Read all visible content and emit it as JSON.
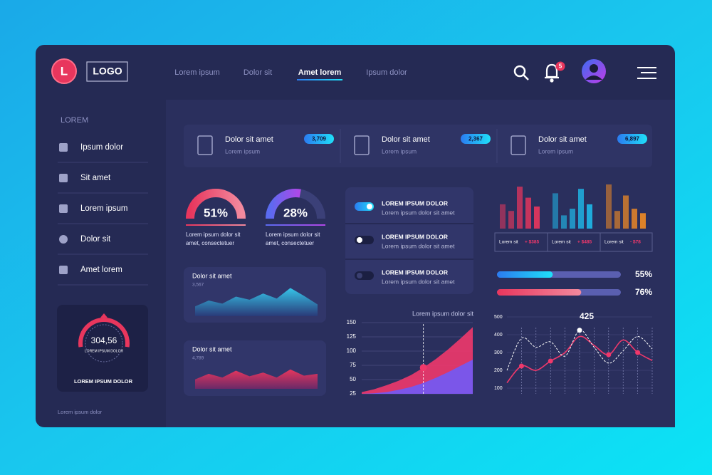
{
  "header": {
    "logo_letter": "L",
    "logo": "LOGO",
    "nav": [
      {
        "label": "Lorem ipsum",
        "active": false
      },
      {
        "label": "Dolor sit",
        "active": false
      },
      {
        "label": "Amet lorem",
        "active": true
      },
      {
        "label": "Ipsum dolor",
        "active": false
      }
    ],
    "notifications": 5
  },
  "sidebar": {
    "heading": "LOREM",
    "items": [
      "Ipsum dolor",
      "Sit amet",
      "Lorem ipsum",
      "Dolor sit",
      "Amet lorem"
    ],
    "gauge": {
      "value": "304,56",
      "inner_label": "LOREM IPSUM DOLOR",
      "label": "LOREM IPSUM DOLOR"
    },
    "footer": "Lorem ipsum dolor"
  },
  "stats": [
    {
      "title": "Dolor sit amet",
      "subtitle": "Lorem ipsum",
      "badge": "3,709"
    },
    {
      "title": "Dolor sit amet",
      "subtitle": "Lorem ipsum",
      "badge": "2,367"
    },
    {
      "title": "Dolor sit amet",
      "subtitle": "Lorem ipsum",
      "badge": "6,897"
    }
  ],
  "donuts": [
    {
      "value": 51,
      "value_label": "51%",
      "text": "Lorem ipsum dolor sit amet, consectetuer"
    },
    {
      "value": 28,
      "value_label": "28%",
      "text": "Lorem ipsum dolor sit amet, consectetuer"
    }
  ],
  "area_cards": [
    {
      "title": "Dolor sit amet",
      "value": "3,567",
      "values": [
        25,
        40,
        32,
        50,
        42,
        58,
        45,
        72,
        52,
        30
      ]
    },
    {
      "title": "Dolor sit amet",
      "value": "4,789",
      "values": [
        30,
        48,
        36,
        58,
        40,
        52,
        36,
        62,
        42,
        48
      ]
    }
  ],
  "toggles": [
    {
      "title": "LOREM IPSUM DOLOR",
      "text": "Lorem ipsum dolor sit amet",
      "on": true
    },
    {
      "title": "LOREM IPSUM DOLOR",
      "text": "Lorem ipsum dolor sit amet",
      "on": false
    },
    {
      "title": "LOREM IPSUM DOLOR",
      "text": "Lorem ipsum dolor sit amet",
      "on": false
    }
  ],
  "bar_chart": {
    "type": "bar",
    "groups": [
      {
        "values": [
          55,
          40,
          95,
          70,
          50
        ],
        "color": "#e8365d",
        "legend": "Lorem sit",
        "change": "+ $385"
      },
      {
        "values": [
          80,
          30,
          45,
          90,
          55
        ],
        "color": "#1fb8e8",
        "legend": "Lorem sit",
        "change": "+ $485"
      },
      {
        "values": [
          100,
          40,
          75,
          45,
          35
        ],
        "color": "#f08a24",
        "legend": "Lorem sit",
        "change": "- $78"
      }
    ]
  },
  "progress": [
    {
      "value": 55,
      "value_label": "55%"
    },
    {
      "value": 76,
      "value_label": "76%"
    }
  ],
  "area_chart": {
    "type": "area",
    "title": "Lorem ipsum dolor sit",
    "ylim": [
      25,
      150
    ],
    "yticks": [
      25,
      50,
      75,
      100,
      125,
      150
    ],
    "series": [
      {
        "color": "#f0386b",
        "values": [
          28,
          33,
          40,
          48,
          58,
          71,
          86,
          103,
          122,
          142
        ]
      },
      {
        "color": "#6a5cff",
        "values": [
          25,
          26,
          28,
          32,
          37,
          44,
          53,
          63,
          74,
          85
        ]
      }
    ]
  },
  "line_chart": {
    "type": "line",
    "ylim": [
      100,
      500
    ],
    "yticks": [
      100,
      200,
      300,
      400,
      500
    ],
    "series": [
      {
        "color": "#f0386b",
        "values": [
          130,
          224,
          200,
          252,
          300,
          390,
          340,
          288,
          370,
          300,
          255
        ]
      },
      {
        "color": "#ffffff",
        "values": [
          200,
          380,
          330,
          360,
          280,
          425,
          330,
          240,
          310,
          390,
          320
        ]
      }
    ]
  }
}
